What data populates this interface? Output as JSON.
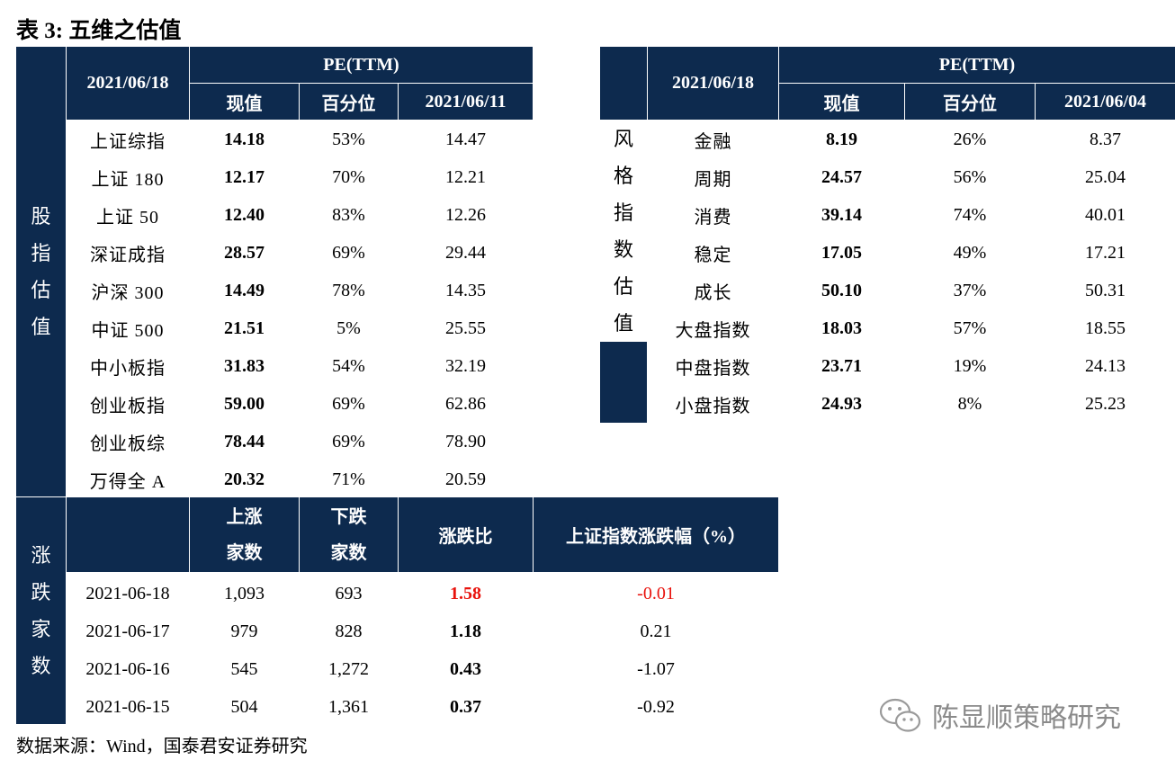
{
  "title": "表 3:  五维之估值",
  "source": "数据来源：Wind，国泰君安证券研究",
  "watermark": "陈显顺策略研究",
  "index_table": {
    "side_label": [
      "股",
      "指",
      "估",
      "值"
    ],
    "date_header": "2021/06/18",
    "pe_header": "PE(TTM)",
    "col_headers": [
      "现值",
      "百分位",
      "2021/06/11"
    ],
    "rows": [
      {
        "name": "上证综指",
        "current": "14.18",
        "percentile": "53%",
        "prev": "14.47"
      },
      {
        "name": "上证 180",
        "current": "12.17",
        "percentile": "70%",
        "prev": "12.21"
      },
      {
        "name": "上证 50",
        "current": "12.40",
        "percentile": "83%",
        "prev": "12.26"
      },
      {
        "name": "深证成指",
        "current": "28.57",
        "percentile": "69%",
        "prev": "29.44"
      },
      {
        "name": "沪深 300",
        "current": "14.49",
        "percentile": "78%",
        "prev": "14.35"
      },
      {
        "name": "中证 500",
        "current": "21.51",
        "percentile": "5%",
        "prev": "25.55"
      },
      {
        "name": "中小板指",
        "current": "31.83",
        "percentile": "54%",
        "prev": "32.19"
      },
      {
        "name": "创业板指",
        "current": "59.00",
        "percentile": "69%",
        "prev": "62.86"
      },
      {
        "name": "创业板综",
        "current": "78.44",
        "percentile": "69%",
        "prev": "78.90"
      },
      {
        "name": "万得全 A",
        "current": "20.32",
        "percentile": "71%",
        "prev": "20.59"
      }
    ]
  },
  "style_table": {
    "side_label": [
      "风",
      "格",
      "指",
      "数",
      "估",
      "值"
    ],
    "date_header": "2021/06/18",
    "pe_header": "PE(TTM)",
    "col_headers": [
      "现值",
      "百分位",
      "2021/06/04"
    ],
    "rows": [
      {
        "name": "金融",
        "current": "8.19",
        "percentile": "26%",
        "prev": "8.37"
      },
      {
        "name": "周期",
        "current": "24.57",
        "percentile": "56%",
        "prev": "25.04"
      },
      {
        "name": "消费",
        "current": "39.14",
        "percentile": "74%",
        "prev": "40.01"
      },
      {
        "name": "稳定",
        "current": "17.05",
        "percentile": "49%",
        "prev": "17.21"
      },
      {
        "name": "成长",
        "current": "50.10",
        "percentile": "37%",
        "prev": "50.31"
      },
      {
        "name": "大盘指数",
        "current": "18.03",
        "percentile": "57%",
        "prev": "18.55"
      },
      {
        "name": "中盘指数",
        "current": "23.71",
        "percentile": "19%",
        "prev": "24.13"
      },
      {
        "name": "小盘指数",
        "current": "24.93",
        "percentile": "8%",
        "prev": "25.23"
      }
    ]
  },
  "breadth_table": {
    "side_label": [
      "涨",
      "跌",
      "家",
      "数"
    ],
    "col_headers": [
      [
        "上涨",
        "家数"
      ],
      [
        "下跌",
        "家数"
      ],
      [
        "涨跌比"
      ],
      [
        "上证指数涨跌幅（%）"
      ]
    ],
    "rows": [
      {
        "date": "2021-06-18",
        "up": "1,093",
        "down": "693",
        "ratio": "1.58",
        "change": "-0.01",
        "highlight": true
      },
      {
        "date": "2021-06-17",
        "up": "979",
        "down": "828",
        "ratio": "1.18",
        "change": "0.21",
        "highlight": false
      },
      {
        "date": "2021-06-16",
        "up": "545",
        "down": "1,272",
        "ratio": "0.43",
        "change": "-1.07",
        "highlight": false
      },
      {
        "date": "2021-06-15",
        "up": "504",
        "down": "1,361",
        "ratio": "0.37",
        "change": "-0.92",
        "highlight": false
      }
    ]
  },
  "colors": {
    "header_bg": "#0d2a4e",
    "highlight": "#e8120c"
  }
}
